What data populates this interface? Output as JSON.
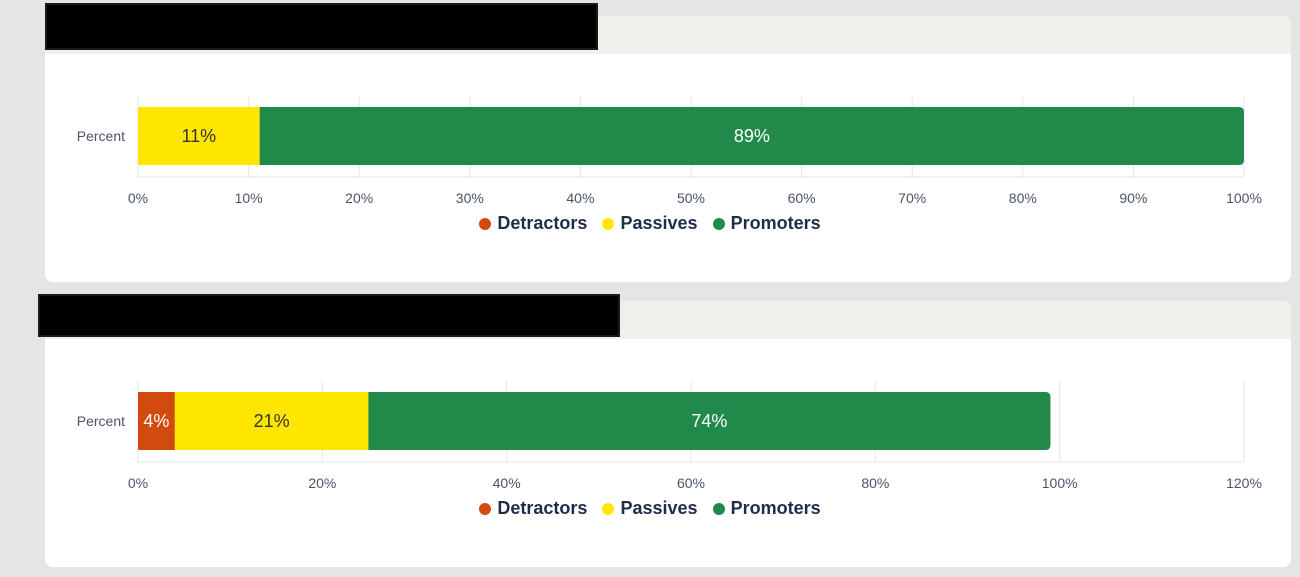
{
  "charts": [
    {
      "chart_data": {
        "type": "bar",
        "orientation": "horizontal",
        "stacked": true,
        "title": "",
        "categories": [
          "Percent"
        ],
        "series": [
          {
            "name": "Detractors",
            "values": [
              0
            ],
            "label": "",
            "color": "#d14b0f"
          },
          {
            "name": "Passives",
            "values": [
              11
            ],
            "label": "11%",
            "color": "#ffe600"
          },
          {
            "name": "Promoters",
            "values": [
              89
            ],
            "label": "89%",
            "color": "#218a4a"
          }
        ],
        "xlim": [
          0,
          100
        ],
        "xticks": [
          "0%",
          "10%",
          "20%",
          "30%",
          "40%",
          "50%",
          "60%",
          "70%",
          "80%",
          "90%",
          "100%"
        ],
        "grid": true,
        "legend": "bottom"
      }
    },
    {
      "chart_data": {
        "type": "bar",
        "orientation": "horizontal",
        "stacked": true,
        "title": "",
        "categories": [
          "Percent"
        ],
        "series": [
          {
            "name": "Detractors",
            "values": [
              4
            ],
            "label": "4%",
            "color": "#d14b0f"
          },
          {
            "name": "Passives",
            "values": [
              21
            ],
            "label": "21%",
            "color": "#ffe600"
          },
          {
            "name": "Promoters",
            "values": [
              74
            ],
            "label": "74%",
            "color": "#218a4a"
          }
        ],
        "xlim": [
          0,
          120
        ],
        "xticks": [
          "0%",
          "20%",
          "40%",
          "60%",
          "80%",
          "100%",
          "120%"
        ],
        "grid": true,
        "legend": "bottom"
      }
    }
  ],
  "legend": {
    "detractors": "Detractors",
    "passives": "Passives",
    "promoters": "Promoters"
  }
}
